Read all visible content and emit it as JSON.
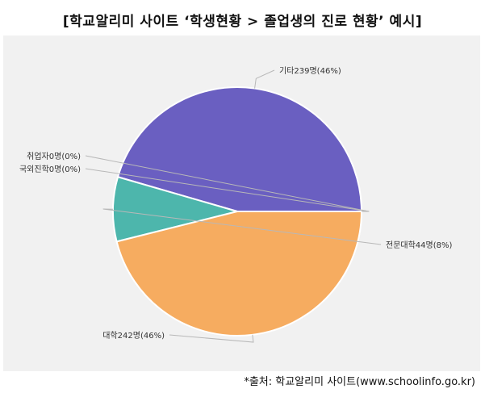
{
  "header": {
    "title": "[학교알리미 사이트 ‘학생현황 > 졸업생의 진로 현황’ 예시]"
  },
  "footer": {
    "source": "*출처: 학교알리미 사이트(www.schoolinfo.go.kr)"
  },
  "chart_data": {
    "type": "pie",
    "title": "",
    "slices": [
      {
        "label": "기타239명(46%)",
        "name": "기타",
        "value": 239,
        "percent": 46,
        "color": "#6a5fc1"
      },
      {
        "label": "전문대학44명(8%)",
        "name": "전문대학",
        "value": 44,
        "percent": 8,
        "color": "#4db6ac"
      },
      {
        "label": "대학242명(46%)",
        "name": "대학",
        "value": 242,
        "percent": 46,
        "color": "#f6ac60"
      },
      {
        "label": "국외진학0명(0%)",
        "name": "국외진학",
        "value": 0,
        "percent": 0,
        "color": "#e88a8a"
      },
      {
        "label": "취업자0명(0%)",
        "name": "취업자",
        "value": 0,
        "percent": 0,
        "color": "#8bc34a"
      }
    ]
  }
}
